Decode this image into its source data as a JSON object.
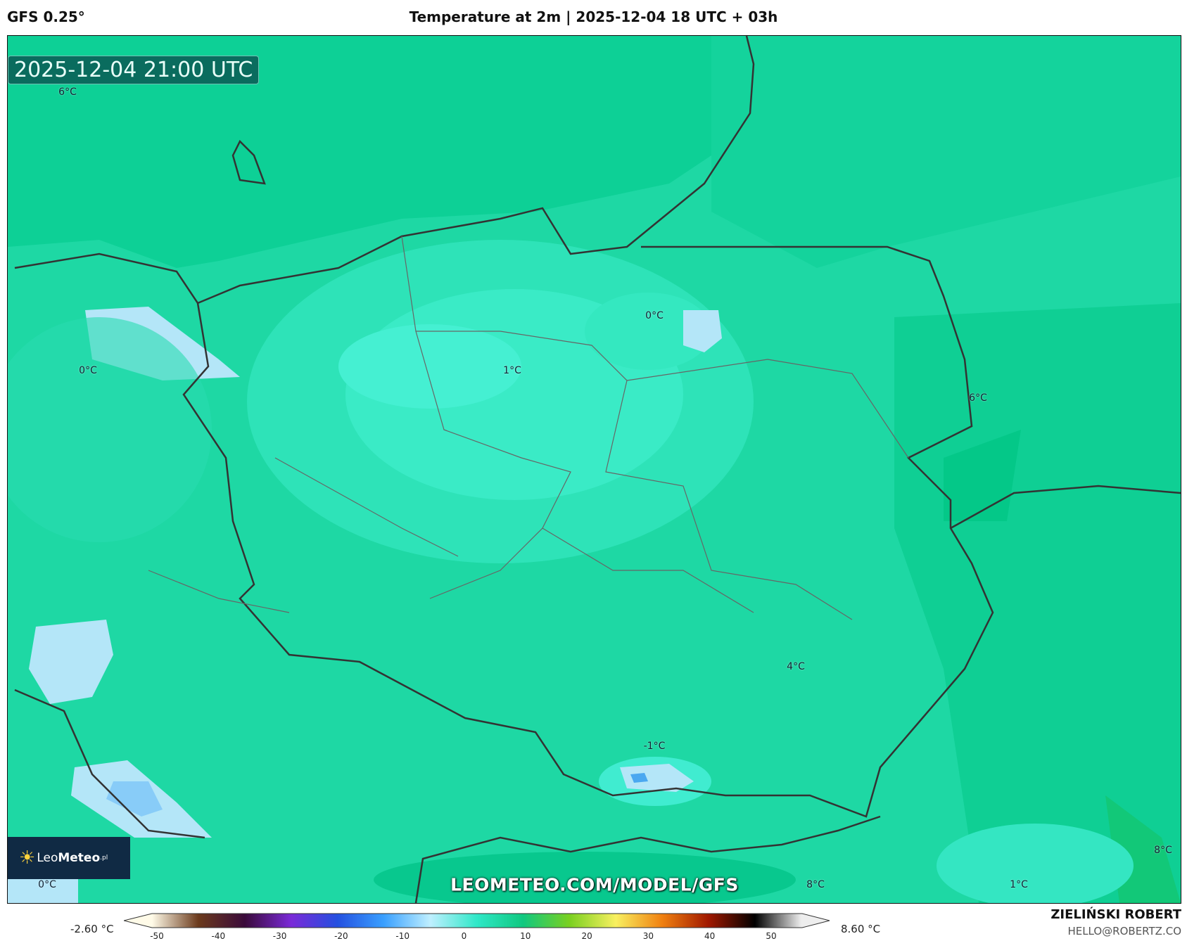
{
  "header": {
    "model": "GFS 0.25°",
    "title": "Temperature at 2m | 2025-12-04 18 UTC + 03h"
  },
  "map": {
    "valid_time": "2025-12-04 21:00 UTC",
    "labels": [
      "6°C",
      "0°C",
      "1°C",
      "0°C",
      "6°C",
      "4°C",
      "-1°C",
      "0°C",
      "8°C",
      "1°C",
      "8°C"
    ],
    "watermark": "LEOMETEO.COM/MODEL/GFS",
    "logo": {
      "text_light": "Leo",
      "text_bold": "Meteo",
      "suffix": ".pl"
    }
  },
  "colorbar": {
    "min_label": "-2.60 °C",
    "max_label": "8.60 °C",
    "ticks": [
      "-50",
      "-40",
      "-30",
      "-20",
      "-10",
      "0",
      "10",
      "20",
      "30",
      "40",
      "50"
    ],
    "colors": [
      "#fffbe8",
      "#6b3a1c",
      "#3a0a3a",
      "#7a2ad8",
      "#2450e0",
      "#3aa0ff",
      "#bfefff",
      "#30e8c8",
      "#10c880",
      "#7ad020",
      "#f8f060",
      "#f08010",
      "#a01800",
      "#000000",
      "#eeeeee"
    ]
  },
  "credits": {
    "author": "ZIELIŃSKI ROBERT",
    "email": "HELLO@ROBERTZ.CO"
  }
}
